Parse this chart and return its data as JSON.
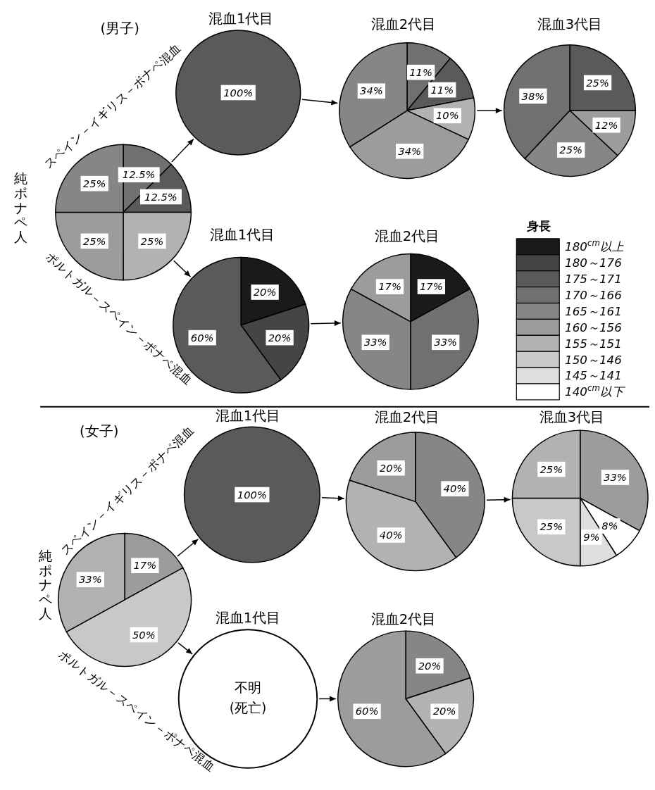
{
  "chart_data": [
    {
      "type": "pie",
      "title": "(男子)",
      "ylabel": "純ポナペ人",
      "annotations": [
        "スペイン－イギリス－ポナペ混血",
        "ポルトガル－スペイン－ポナペ混血"
      ],
      "categories": [
        null,
        null,
        null,
        null,
        null
      ],
      "values": [
        12.5,
        12.5,
        25,
        25,
        25
      ],
      "value_labels": [
        "12.5%",
        "12.5%",
        "25%",
        "25%",
        "25%"
      ],
      "colors": [
        "#707070",
        "#5a5a5a",
        "#b2b2b2",
        "#9c9c9c",
        "#868686"
      ]
    },
    {
      "type": "pie",
      "title": "混血1代目",
      "categories": [
        null
      ],
      "values": [
        100
      ],
      "value_labels": [
        "100%"
      ],
      "colors": [
        "#5a5a5a"
      ]
    },
    {
      "type": "pie",
      "title": "混血2代目",
      "categories": [
        null,
        null,
        null,
        null,
        null
      ],
      "values": [
        11,
        11,
        10,
        34,
        34
      ],
      "value_labels": [
        "11%",
        "11%",
        "10%",
        "34%",
        "34%"
      ],
      "colors": [
        "#707070",
        "#5a5a5a",
        "#b2b2b2",
        "#9c9c9c",
        "#868686"
      ]
    },
    {
      "type": "pie",
      "title": "混血3代目",
      "categories": [
        null,
        null,
        null,
        null
      ],
      "values": [
        25,
        12,
        25,
        38
      ],
      "value_labels": [
        "25%",
        "12%",
        "25%",
        "38%"
      ],
      "colors": [
        "#5a5a5a",
        "#9c9c9c",
        "#868686",
        "#707070"
      ]
    },
    {
      "type": "pie",
      "title": "混血1代目",
      "categories": [
        null,
        null,
        null
      ],
      "values": [
        20,
        20,
        60
      ],
      "value_labels": [
        "20%",
        "20%",
        "60%"
      ],
      "colors": [
        "#1a1a1a",
        "#454545",
        "#5a5a5a"
      ]
    },
    {
      "type": "pie",
      "title": "混血2代目",
      "legend": "right",
      "legend_title": "身長",
      "categories": [
        "180$^{cm}$以上",
        "180～176",
        "175～171",
        "170～166",
        "165～161",
        "160～156",
        "155～151",
        "150～146",
        "145～141",
        "140$^{cm}$以下"
      ],
      "values": [
        17,
        null,
        null,
        33,
        33,
        17,
        null,
        null,
        null,
        null
      ],
      "value_labels": [
        "17%",
        null,
        null,
        "33%",
        "33%",
        "17%",
        null,
        null,
        null,
        null
      ],
      "colors": [
        "#1a1a1a",
        "#454545",
        "#5a5a5a",
        "#707070",
        "#868686",
        "#9c9c9c",
        "#b2b2b2",
        "#c8c8c8",
        "#dedede",
        "#ffffff"
      ]
    },
    {
      "type": "pie",
      "title": "(女子)",
      "ylabel": "純ポナペ人",
      "annotations": [
        "スペイン－イギリス－ポナペ混血",
        "ポルトガル－スペイン－ポナペ混血"
      ],
      "categories": [
        null,
        null,
        null
      ],
      "values": [
        17,
        50,
        33
      ],
      "value_labels": [
        "17%",
        "50%",
        "33%"
      ],
      "colors": [
        "#9c9c9c",
        "#c8c8c8",
        "#b2b2b2"
      ]
    },
    {
      "type": "pie",
      "title": "混血1代目",
      "categories": [
        null
      ],
      "values": [
        100
      ],
      "value_labels": [
        "100%"
      ],
      "colors": [
        "#5a5a5a"
      ]
    },
    {
      "type": "pie",
      "title": "混血2代目",
      "categories": [
        null,
        null,
        null
      ],
      "values": [
        40,
        40,
        20
      ],
      "value_labels": [
        "40%",
        "40%",
        "20%"
      ],
      "colors": [
        "#868686",
        "#b2b2b2",
        "#9c9c9c"
      ]
    },
    {
      "type": "pie",
      "title": "混血3代目",
      "categories": [
        null,
        null,
        null,
        null,
        null
      ],
      "values": [
        33,
        8,
        9,
        25,
        25
      ],
      "value_labels": [
        "33%",
        "8%",
        "9%",
        "25%",
        "25%"
      ],
      "colors": [
        "#9c9c9c",
        "#ffffff",
        "#dedede",
        "#c8c8c8",
        "#b2b2b2"
      ]
    },
    {
      "type": "other",
      "title": "混血1代目",
      "annotations": [
        "不明",
        "(死亡)"
      ]
    },
    {
      "type": "pie",
      "title": "混血2代目",
      "categories": [
        null,
        null,
        null
      ],
      "values": [
        20,
        20,
        60
      ],
      "value_labels": [
        "20%",
        "20%",
        "60%"
      ],
      "colors": [
        "#868686",
        "#b2b2b2",
        "#9c9c9c"
      ]
    }
  ]
}
